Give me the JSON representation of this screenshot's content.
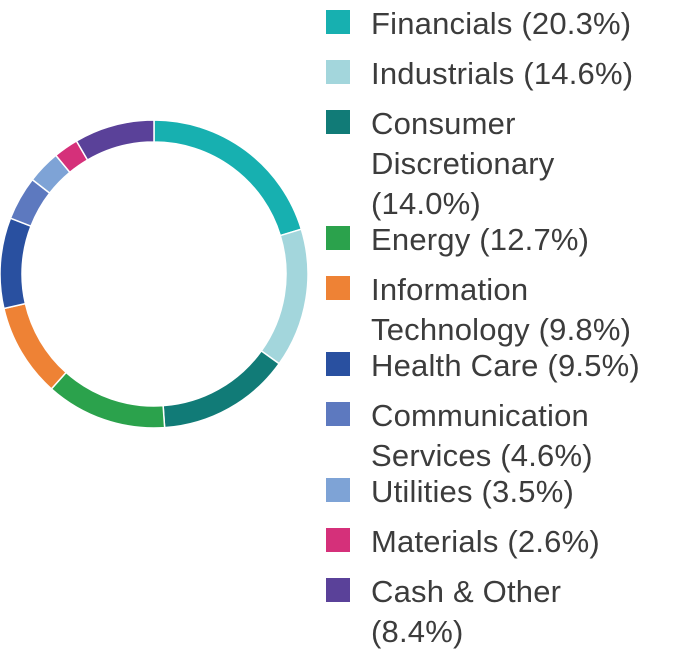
{
  "chart_data": {
    "type": "pie",
    "variant": "donut",
    "start_angle_deg": 0,
    "direction": "clockwise",
    "legend_position": "right",
    "slices": [
      {
        "label": "Financials (20.3%)",
        "value": 20.3,
        "color": "#17b0b0"
      },
      {
        "label": "Industrials (14.6%)",
        "value": 14.6,
        "color": "#a3d6dc"
      },
      {
        "label": "Consumer Discretionary (14.0%)",
        "value": 14.0,
        "color": "#117b77"
      },
      {
        "label": "Energy (12.7%)",
        "value": 12.7,
        "color": "#2ba24c"
      },
      {
        "label": "Information Technology (9.8%)",
        "value": 9.8,
        "color": "#ee8235"
      },
      {
        "label": "Health Care (9.5%)",
        "value": 9.5,
        "color": "#2950a0"
      },
      {
        "label": "Communication Services (4.6%)",
        "value": 4.6,
        "color": "#5d79bf"
      },
      {
        "label": "Utilities (3.5%)",
        "value": 3.5,
        "color": "#7ea3d6"
      },
      {
        "label": "Materials (2.6%)",
        "value": 2.6,
        "color": "#d5307a"
      },
      {
        "label": "Cash & Other (8.4%)",
        "value": 8.4,
        "color": "#5a4199"
      }
    ]
  }
}
